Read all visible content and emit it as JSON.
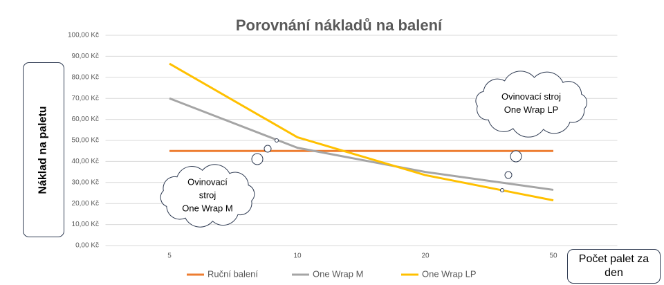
{
  "chart_data": {
    "type": "line",
    "title": "Porovnání nákladů na balení",
    "y_label": "Náklad na paletu",
    "x_label": "Počet palet za den",
    "categories": [
      "5",
      "10",
      "20",
      "50"
    ],
    "series": [
      {
        "name": "Ruční balení",
        "color": "#ed7d31",
        "values": [
          45,
          45,
          45,
          45
        ]
      },
      {
        "name": "One Wrap M",
        "color": "#a5a5a5",
        "values": [
          70,
          46.5,
          35,
          26.5
        ]
      },
      {
        "name": "One Wrap LP",
        "color": "#ffc000",
        "values": [
          86.5,
          51.5,
          33.5,
          21.5
        ]
      }
    ],
    "ylim": [
      0,
      100
    ],
    "yticks": [
      {
        "value": 0,
        "label": "0,00 Kč"
      },
      {
        "value": 10,
        "label": "10,00 Kč"
      },
      {
        "value": 20,
        "label": "20,00 Kč"
      },
      {
        "value": 30,
        "label": "30,00 Kč"
      },
      {
        "value": 40,
        "label": "40,00 Kč"
      },
      {
        "value": 50,
        "label": "50,00 Kč"
      },
      {
        "value": 60,
        "label": "60,00 Kč"
      },
      {
        "value": 70,
        "label": "70,00 Kč"
      },
      {
        "value": 80,
        "label": "80,00 Kč"
      },
      {
        "value": 90,
        "label": "90,00 Kč"
      },
      {
        "value": 100,
        "label": "100,00 Kč"
      }
    ],
    "grid": true,
    "legend": "bottom",
    "annotations": [
      {
        "lines": [
          "Ovinovací stroj",
          "One Wrap LP"
        ]
      },
      {
        "lines": [
          "Ovinovací",
          "stroj",
          "One Wrap M"
        ]
      }
    ]
  }
}
